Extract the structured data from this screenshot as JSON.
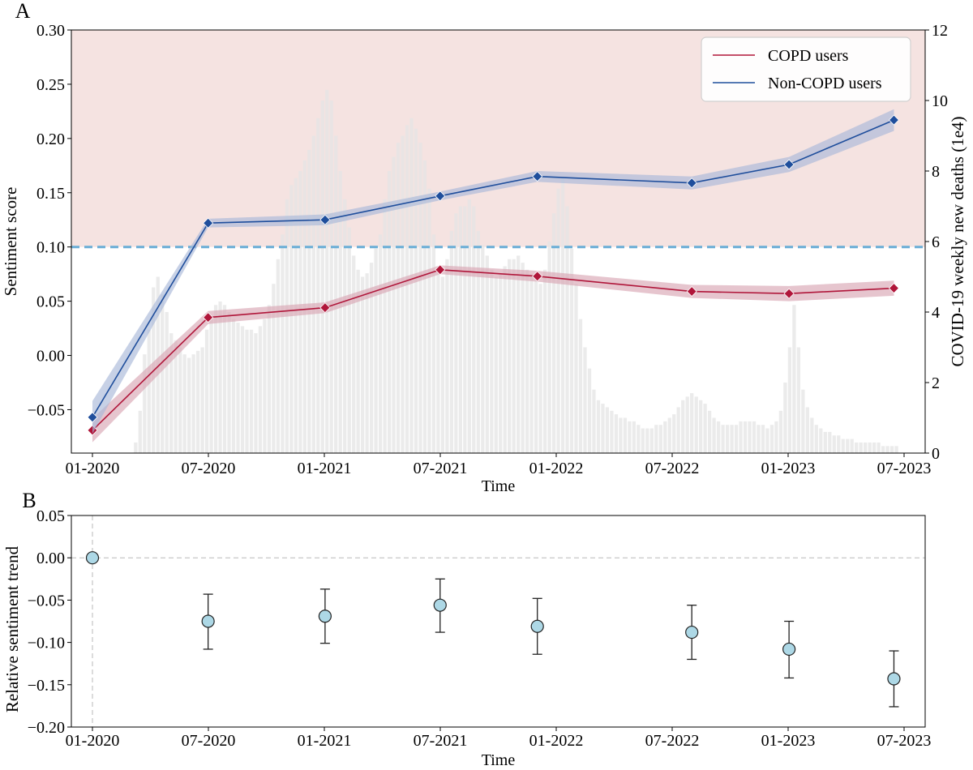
{
  "figure": {
    "panel_a_label": "A",
    "panel_b_label": "B"
  },
  "chart_data": [
    {
      "panel": "A",
      "type": "line",
      "xlabel": "Time",
      "ylabel": "Sentiment score",
      "y2label": "COVID-19 weekly new deaths (1e4)",
      "x_ticks": [
        "01-2020",
        "07-2020",
        "01-2021",
        "07-2021",
        "01-2022",
        "07-2022",
        "01-2023",
        "07-2023"
      ],
      "x_range": [
        "2020-01-01",
        "2023-07-01"
      ],
      "ylim": [
        -0.09,
        0.3
      ],
      "y_ticks": [
        "−0.05",
        "0.00",
        "0.05",
        "0.10",
        "0.15",
        "0.20",
        "0.25",
        "0.30"
      ],
      "y_tick_values": [
        -0.05,
        0.0,
        0.05,
        0.1,
        0.15,
        0.2,
        0.25,
        0.3
      ],
      "y2lim": [
        0,
        12
      ],
      "y2_ticks": [
        "0",
        "2",
        "4",
        "6",
        "8",
        "10",
        "12"
      ],
      "y2_tick_values": [
        0,
        2,
        4,
        6,
        8,
        10,
        12
      ],
      "threshold_line": 0.1,
      "positive_region_color": "#f5e3e1",
      "legend_position": "top-right",
      "series": [
        {
          "name": "COPD users",
          "color": "#b0163a",
          "band_color": "#d9a6b3",
          "dates": [
            "2020-01-01",
            "2020-07-01",
            "2021-01-01",
            "2021-07-01",
            "2021-12-01",
            "2022-08-01",
            "2023-01-01",
            "2023-06-15"
          ],
          "values": [
            -0.069,
            0.035,
            0.044,
            0.079,
            0.073,
            0.059,
            0.057,
            0.062
          ],
          "lower": [
            -0.08,
            0.029,
            0.039,
            0.075,
            0.068,
            0.053,
            0.05,
            0.055
          ],
          "upper": [
            -0.058,
            0.041,
            0.049,
            0.083,
            0.078,
            0.065,
            0.064,
            0.069
          ]
        },
        {
          "name": "Non-COPD users",
          "color": "#1f4e9c",
          "band_color": "#a9b8d9",
          "dates": [
            "2020-01-01",
            "2020-07-01",
            "2021-01-01",
            "2021-07-01",
            "2021-12-01",
            "2022-08-01",
            "2023-01-01",
            "2023-06-15"
          ],
          "values": [
            -0.057,
            0.122,
            0.125,
            0.147,
            0.165,
            0.159,
            0.176,
            0.217
          ],
          "lower": [
            -0.072,
            0.118,
            0.12,
            0.143,
            0.16,
            0.153,
            0.169,
            0.207
          ],
          "upper": [
            -0.042,
            0.126,
            0.13,
            0.151,
            0.17,
            0.165,
            0.183,
            0.227
          ]
        }
      ],
      "deaths_series": {
        "name": "COVID-19 weekly new deaths",
        "color": "#e4e4e4",
        "start_date": "2020-01-06",
        "weekly_values": [
          0.01,
          0.01,
          0.01,
          0.01,
          0.01,
          0.01,
          0.01,
          0.01,
          0.01,
          0.3,
          1.2,
          2.8,
          3.5,
          4.7,
          5.0,
          4.5,
          4.0,
          3.4,
          3.2,
          3.0,
          2.8,
          2.7,
          2.8,
          2.9,
          3.0,
          3.5,
          3.8,
          4.2,
          4.3,
          4.2,
          4.0,
          3.8,
          3.7,
          3.6,
          3.5,
          3.5,
          3.4,
          3.6,
          3.8,
          4.2,
          4.8,
          5.5,
          6.2,
          7.2,
          7.6,
          7.8,
          8.0,
          8.3,
          8.6,
          9.0,
          9.5,
          10.0,
          10.3,
          10.0,
          9.0,
          8.0,
          7.2,
          6.4,
          5.6,
          5.2,
          5.0,
          5.1,
          5.4,
          5.8,
          6.2,
          7.2,
          8.0,
          8.4,
          8.8,
          9.0,
          9.3,
          9.5,
          9.2,
          8.8,
          8.3,
          7.5,
          6.2,
          5.3,
          5.0,
          5.5,
          6.3,
          6.8,
          7.0,
          7.0,
          7.2,
          7.0,
          6.3,
          5.9,
          5.6,
          5.2,
          5.0,
          5.1,
          5.3,
          5.5,
          5.5,
          5.6,
          5.4,
          5.2,
          5.0,
          4.9,
          4.8,
          5.2,
          6.0,
          6.8,
          7.5,
          7.8,
          7.0,
          5.8,
          4.8,
          3.8,
          3.0,
          2.4,
          1.8,
          1.5,
          1.4,
          1.3,
          1.2,
          1.1,
          1.0,
          1.0,
          0.9,
          0.9,
          0.8,
          0.7,
          0.7,
          0.7,
          0.8,
          0.8,
          0.9,
          1.0,
          1.1,
          1.3,
          1.5,
          1.6,
          1.7,
          1.6,
          1.5,
          1.4,
          1.2,
          1.0,
          0.9,
          0.8,
          0.8,
          0.8,
          0.8,
          0.9,
          0.9,
          0.9,
          0.9,
          0.8,
          0.8,
          0.7,
          0.8,
          0.9,
          1.2,
          2.0,
          3.0,
          4.2,
          3.0,
          1.8,
          1.3,
          1.0,
          0.8,
          0.7,
          0.6,
          0.6,
          0.5,
          0.5,
          0.4,
          0.4,
          0.4,
          0.3,
          0.3,
          0.3,
          0.3,
          0.3,
          0.3,
          0.2,
          0.2,
          0.2,
          0.2
        ]
      }
    },
    {
      "panel": "B",
      "type": "scatter",
      "xlabel": "Time",
      "ylabel": "Relative sentiment trend",
      "x_ticks": [
        "01-2020",
        "07-2020",
        "01-2021",
        "07-2021",
        "01-2022",
        "07-2022",
        "01-2023",
        "07-2023"
      ],
      "x_range": [
        "2020-01-01",
        "2023-07-01"
      ],
      "ylim": [
        -0.2,
        0.05
      ],
      "y_ticks": [
        "−0.20",
        "−0.15",
        "−0.10",
        "−0.05",
        "0.00",
        "0.05"
      ],
      "y_tick_values": [
        -0.2,
        -0.15,
        -0.1,
        -0.05,
        0.0,
        0.05
      ],
      "reference_line_y": 0.0,
      "reference_line_x": "2020-01-01",
      "marker_color": "#add8e6",
      "points": {
        "dates": [
          "2020-01-01",
          "2020-07-01",
          "2021-01-01",
          "2021-07-01",
          "2021-12-01",
          "2022-08-01",
          "2023-01-01",
          "2023-06-15"
        ],
        "values": [
          0.0,
          -0.075,
          -0.069,
          -0.056,
          -0.081,
          -0.088,
          -0.108,
          -0.143
        ],
        "lower": [
          0.0,
          -0.108,
          -0.101,
          -0.088,
          -0.114,
          -0.12,
          -0.142,
          -0.176
        ],
        "upper": [
          0.0,
          -0.043,
          -0.037,
          -0.025,
          -0.048,
          -0.056,
          -0.075,
          -0.11
        ]
      }
    }
  ]
}
